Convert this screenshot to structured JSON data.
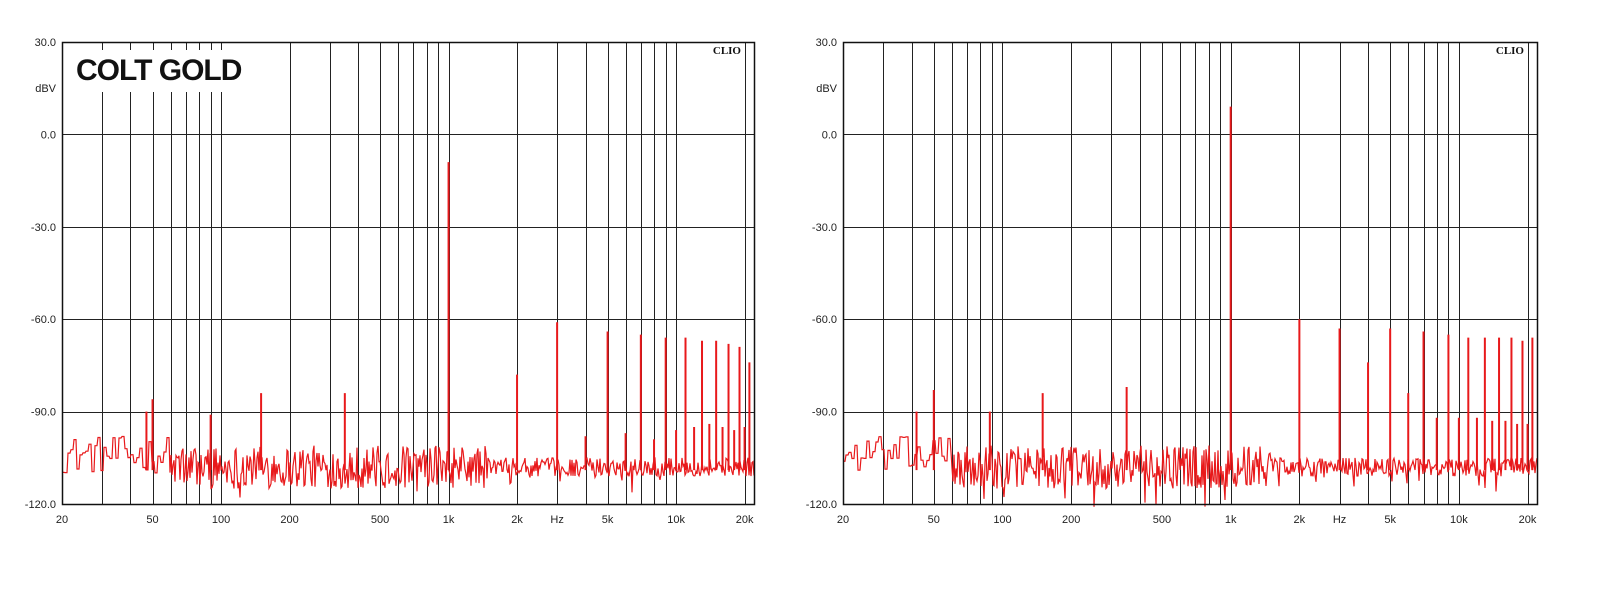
{
  "chart_data": [
    {
      "type": "line",
      "title": "COLT GOLD",
      "watermark": "CLIO",
      "x_scale": "log",
      "xlim": [
        20,
        22000
      ],
      "ylim": [
        -120,
        30
      ],
      "xlabel": "Hz",
      "ylabel": "dBV",
      "grid": true,
      "y_ticks": [
        30,
        0,
        -30,
        -60,
        -90,
        -120
      ],
      "y_tick_labels": [
        "30.0",
        "0.0",
        "-30.0",
        "-60.0",
        "-90.0",
        "-120.0"
      ],
      "x_tick_values": [
        20,
        50,
        100,
        200,
        500,
        1000,
        2000,
        3000,
        5000,
        10000,
        20000
      ],
      "x_tick_labels": [
        "20",
        "50",
        "100",
        "200",
        "500",
        "1k",
        "2k",
        "Hz",
        "5k",
        "10k",
        "20k"
      ],
      "line_color": "#e8191b",
      "series": [
        {
          "noise_floor_db": -107,
          "peaks": [
            {
              "x": 47,
              "y": -90
            },
            {
              "x": 50,
              "y": -86
            },
            {
              "x": 90,
              "y": -91
            },
            {
              "x": 150,
              "y": -84
            },
            {
              "x": 350,
              "y": -84
            },
            {
              "x": 1000,
              "y": -9
            },
            {
              "x": 2000,
              "y": -78
            },
            {
              "x": 3000,
              "y": -61
            },
            {
              "x": 4000,
              "y": -98
            },
            {
              "x": 5000,
              "y": -64
            },
            {
              "x": 6000,
              "y": -97
            },
            {
              "x": 7000,
              "y": -65
            },
            {
              "x": 8000,
              "y": -99
            },
            {
              "x": 9000,
              "y": -66
            },
            {
              "x": 10000,
              "y": -96
            },
            {
              "x": 11000,
              "y": -66
            },
            {
              "x": 12000,
              "y": -95
            },
            {
              "x": 13000,
              "y": -67
            },
            {
              "x": 14000,
              "y": -94
            },
            {
              "x": 15000,
              "y": -67
            },
            {
              "x": 16000,
              "y": -95
            },
            {
              "x": 17000,
              "y": -68
            },
            {
              "x": 18000,
              "y": -96
            },
            {
              "x": 19000,
              "y": -69
            },
            {
              "x": 20000,
              "y": -95
            },
            {
              "x": 21000,
              "y": -74
            }
          ]
        }
      ]
    },
    {
      "type": "line",
      "title": "",
      "watermark": "CLIO",
      "x_scale": "log",
      "xlim": [
        20,
        22000
      ],
      "ylim": [
        -120,
        30
      ],
      "xlabel": "Hz",
      "ylabel": "dBV",
      "grid": true,
      "y_ticks": [
        30,
        0,
        -30,
        -60,
        -90,
        -120
      ],
      "y_tick_labels": [
        "30.0",
        "0.0",
        "-30.0",
        "-60.0",
        "-90.0",
        "-120.0"
      ],
      "x_tick_values": [
        20,
        50,
        100,
        200,
        500,
        1000,
        2000,
        3000,
        5000,
        10000,
        20000
      ],
      "x_tick_labels": [
        "20",
        "50",
        "100",
        "200",
        "500",
        "1k",
        "2k",
        "Hz",
        "5k",
        "10k",
        "20k"
      ],
      "line_color": "#e8191b",
      "series": [
        {
          "noise_floor_db": -107,
          "peaks": [
            {
              "x": 42,
              "y": -90
            },
            {
              "x": 50,
              "y": -83
            },
            {
              "x": 88,
              "y": -90
            },
            {
              "x": 150,
              "y": -84
            },
            {
              "x": 350,
              "y": -82
            },
            {
              "x": 1000,
              "y": 9
            },
            {
              "x": 2000,
              "y": -60
            },
            {
              "x": 3000,
              "y": -63
            },
            {
              "x": 4000,
              "y": -74
            },
            {
              "x": 5000,
              "y": -63
            },
            {
              "x": 6000,
              "y": -84
            },
            {
              "x": 7000,
              "y": -64
            },
            {
              "x": 8000,
              "y": -92
            },
            {
              "x": 9000,
              "y": -65
            },
            {
              "x": 10000,
              "y": -92
            },
            {
              "x": 11000,
              "y": -66
            },
            {
              "x": 12000,
              "y": -92
            },
            {
              "x": 13000,
              "y": -66
            },
            {
              "x": 14000,
              "y": -93
            },
            {
              "x": 15000,
              "y": -66
            },
            {
              "x": 16000,
              "y": -93
            },
            {
              "x": 17000,
              "y": -66
            },
            {
              "x": 18000,
              "y": -94
            },
            {
              "x": 19000,
              "y": -67
            },
            {
              "x": 20000,
              "y": -94
            },
            {
              "x": 21000,
              "y": -66
            }
          ]
        }
      ]
    }
  ]
}
